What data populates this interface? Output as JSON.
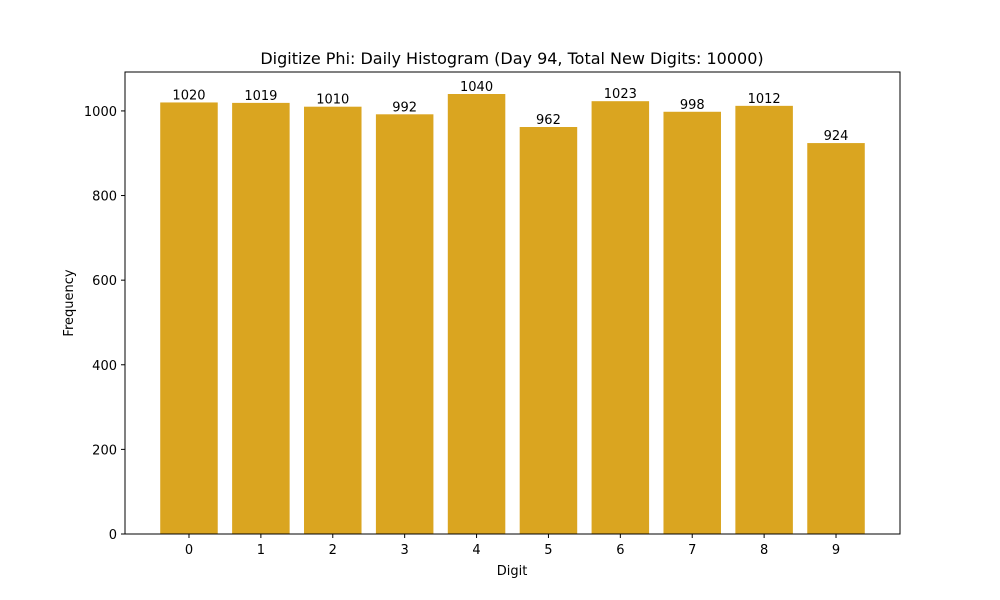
{
  "chart_data": {
    "type": "bar",
    "title": "Digitize Phi: Daily Histogram (Day 94, Total New Digits: 10000)",
    "xlabel": "Digit",
    "ylabel": "Frequency",
    "categories": [
      "0",
      "1",
      "2",
      "3",
      "4",
      "5",
      "6",
      "7",
      "8",
      "9"
    ],
    "values": [
      1020,
      1019,
      1010,
      992,
      1040,
      962,
      1023,
      998,
      1012,
      924
    ],
    "data_labels": [
      "1020",
      "1019",
      "1010",
      "992",
      "1040",
      "962",
      "1023",
      "998",
      "1012",
      "924"
    ],
    "yticks": [
      0,
      200,
      400,
      600,
      800,
      1000
    ],
    "ytick_labels": [
      "0",
      "200",
      "400",
      "600",
      "800",
      "1000"
    ],
    "ylim": [
      0,
      1092
    ],
    "grid": false,
    "legend": null,
    "bar_color": "#DAA520"
  }
}
